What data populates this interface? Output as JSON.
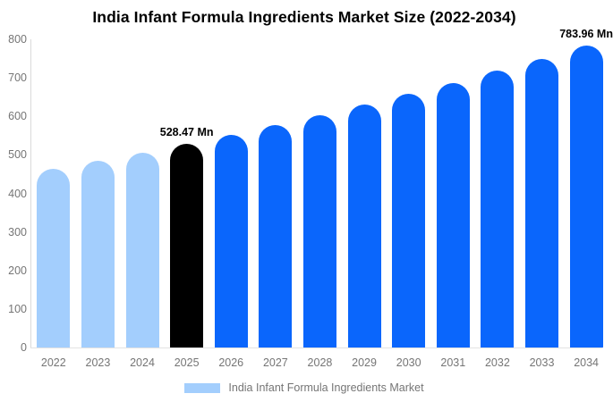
{
  "chart_data": {
    "type": "bar",
    "title": "India Infant Formula Ingredients Market Size (2022-2034)",
    "categories": [
      "2022",
      "2023",
      "2024",
      "2025",
      "2026",
      "2027",
      "2028",
      "2029",
      "2030",
      "2031",
      "2032",
      "2033",
      "2034"
    ],
    "values": [
      463,
      484,
      506,
      528.47,
      552,
      577,
      603,
      630,
      658,
      687,
      718,
      750,
      783.96
    ],
    "bar_colors": [
      "#a3cefd",
      "#a3cefd",
      "#a3cefd",
      "#000000",
      "#0a66fc",
      "#0a66fc",
      "#0a66fc",
      "#0a66fc",
      "#0a66fc",
      "#0a66fc",
      "#0a66fc",
      "#0a66fc",
      "#0a66fc"
    ],
    "annotations": [
      {
        "index": 3,
        "category": "2025",
        "text": "528.47 Mn"
      },
      {
        "index": 12,
        "category": "2034",
        "text": "783.96 Mn"
      }
    ],
    "xlabel": "",
    "ylabel": "",
    "ylim": [
      0,
      800
    ],
    "yticks": [
      0,
      100,
      200,
      300,
      400,
      500,
      600,
      700,
      800
    ],
    "grid": false,
    "legend": {
      "position": "bottom",
      "label": "India Infant Formula Ingredients Market",
      "swatch_color": "#a3cefd"
    },
    "colors": {
      "historical_bar": "#a3cefd",
      "highlight_bar": "#000000",
      "forecast_bar": "#0a66fc",
      "axis_text": "#757575",
      "axis_line": "#dadada",
      "title_text": "#000000",
      "background": "#ffffff"
    }
  }
}
